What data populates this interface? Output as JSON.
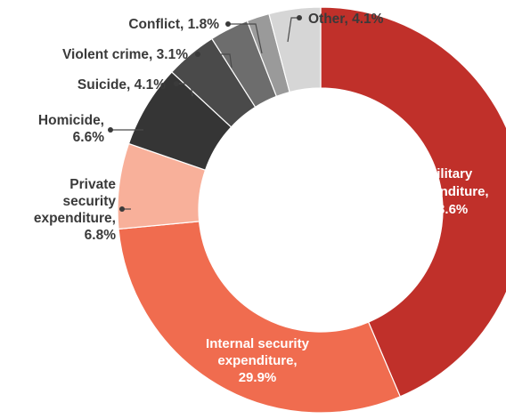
{
  "chart_data": {
    "type": "pie",
    "donut": true,
    "title": "",
    "legend": "none",
    "slices": [
      {
        "label_lines": [
          "Military",
          "expenditure,",
          "43.6%"
        ],
        "category": "Military expenditure",
        "value": 43.6,
        "color": "#c0302a"
      },
      {
        "label_lines": [
          "Internal security",
          "expenditure,",
          "29.9%"
        ],
        "category": "Internal security expenditure",
        "value": 29.9,
        "color": "#f06c4f"
      },
      {
        "label_lines": [
          "Private",
          "security",
          "expenditure,",
          "6.8%"
        ],
        "category": "Private security expenditure",
        "value": 6.8,
        "color": "#f8b09a"
      },
      {
        "label_lines": [
          "Homicide,",
          "6.6%"
        ],
        "category": "Homicide",
        "value": 6.6,
        "color": "#353535"
      },
      {
        "label_lines": [
          "Suicide, 4.1%"
        ],
        "category": "Suicide",
        "value": 4.1,
        "color": "#4a4a4a"
      },
      {
        "label_lines": [
          "Violent crime, 3.1%"
        ],
        "category": "Violent crime",
        "value": 3.1,
        "color": "#6d6d6d"
      },
      {
        "label_lines": [
          "Conflict, 1.8%"
        ],
        "category": "Conflict",
        "value": 1.8,
        "color": "#9a9a9a"
      },
      {
        "label_lines": [
          "Other, 4.1%"
        ],
        "category": "Other",
        "value": 4.1,
        "color": "#d6d6d6"
      }
    ]
  }
}
